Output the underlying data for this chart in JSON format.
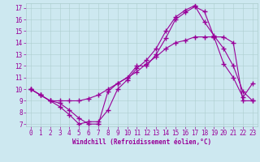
{
  "xlabel": "Windchill (Refroidissement éolien,°C)",
  "background_color": "#cde8f0",
  "line_color": "#990099",
  "xlim": [
    -0.5,
    23.5
  ],
  "ylim": [
    6.8,
    17.4
  ],
  "xticks": [
    0,
    1,
    2,
    3,
    4,
    5,
    6,
    7,
    8,
    9,
    10,
    11,
    12,
    13,
    14,
    15,
    16,
    17,
    18,
    19,
    20,
    21,
    22,
    23
  ],
  "yticks": [
    7,
    8,
    9,
    10,
    11,
    12,
    13,
    14,
    15,
    16,
    17
  ],
  "line1_x": [
    0,
    1,
    2,
    3,
    4,
    5,
    6,
    7,
    8,
    9,
    10,
    11,
    12,
    13,
    14,
    15,
    16,
    17,
    18,
    19,
    20,
    21,
    22,
    23
  ],
  "line1_y": [
    10.0,
    9.5,
    9.0,
    8.8,
    8.2,
    7.5,
    7.0,
    7.0,
    9.8,
    10.5,
    11.0,
    12.0,
    12.0,
    13.0,
    14.4,
    16.0,
    16.6,
    17.1,
    16.7,
    14.5,
    12.2,
    11.0,
    9.3,
    10.5
  ],
  "line2_x": [
    0,
    1,
    2,
    3,
    4,
    5,
    6,
    7,
    8,
    9,
    10,
    11,
    12,
    13,
    14,
    15,
    16,
    17,
    18,
    19,
    20,
    21,
    22,
    23
  ],
  "line2_y": [
    10.0,
    9.5,
    9.0,
    9.0,
    9.0,
    9.0,
    9.2,
    9.5,
    10.0,
    10.5,
    11.0,
    11.5,
    12.2,
    12.8,
    13.5,
    14.0,
    14.2,
    14.5,
    14.5,
    14.5,
    14.5,
    14.0,
    9.0,
    9.0
  ],
  "line3_x": [
    0,
    1,
    2,
    3,
    4,
    5,
    6,
    7,
    8,
    9,
    10,
    11,
    12,
    13,
    14,
    15,
    16,
    17,
    18,
    19,
    20,
    21,
    22,
    23
  ],
  "line3_y": [
    10.0,
    9.5,
    9.0,
    8.5,
    7.8,
    7.0,
    7.2,
    7.2,
    8.2,
    10.0,
    10.8,
    11.8,
    12.5,
    13.5,
    15.0,
    16.2,
    16.8,
    17.2,
    15.8,
    14.6,
    13.5,
    12.0,
    9.8,
    9.0
  ]
}
